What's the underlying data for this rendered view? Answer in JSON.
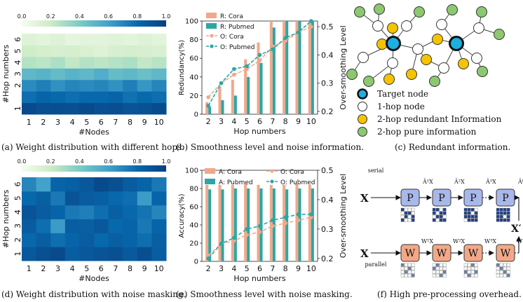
{
  "captions": {
    "a": "(a) Weight distribution with different hops.",
    "b": "(b) Smoothness level and noise information.",
    "c": "(c) Redundant information.",
    "d": "(d) Weight distribution with noise masking.",
    "e": "(e) Smoothness level with noise masking.",
    "f": "(f) High pre-processing overhead."
  },
  "chart_data": [
    {
      "id": "a",
      "type": "heatmap",
      "xlabel": "#Nodes",
      "ylabel": "#Hop numbers",
      "x_ticks": [
        "1",
        "2",
        "3",
        "4",
        "5",
        "6",
        "7",
        "8",
        "9",
        "10"
      ],
      "y_ticks": [
        "1",
        "2",
        "3",
        "4",
        "5",
        "6"
      ],
      "colorbar_ticks": [
        "0.0",
        "0.2",
        "0.4",
        "0.6",
        "0.8",
        "1.0"
      ],
      "colorscale": "GnBu",
      "values": [
        [
          0.95,
          0.92,
          0.93,
          0.92,
          0.95,
          0.92,
          0.93,
          0.9,
          0.91,
          0.94
        ],
        [
          0.78,
          0.82,
          0.8,
          0.78,
          0.8,
          0.8,
          0.82,
          0.77,
          0.8,
          0.78
        ],
        [
          0.68,
          0.72,
          0.66,
          0.7,
          0.68,
          0.7,
          0.66,
          0.72,
          0.64,
          0.7
        ],
        [
          0.5,
          0.52,
          0.48,
          0.52,
          0.5,
          0.55,
          0.48,
          0.5,
          0.46,
          0.5
        ],
        [
          0.26,
          0.24,
          0.28,
          0.22,
          0.26,
          0.24,
          0.26,
          0.28,
          0.22,
          0.25
        ],
        [
          0.18,
          0.16,
          0.15,
          0.16,
          0.14,
          0.12,
          0.15,
          0.16,
          0.15,
          0.14
        ],
        [
          0.12,
          0.1,
          0.12,
          0.08,
          0.1,
          0.1,
          0.11,
          0.1,
          0.12,
          0.1
        ]
      ],
      "row_labels": [
        "1",
        "",
        "2",
        "3",
        "4",
        "5",
        "6"
      ]
    },
    {
      "id": "b",
      "type": "bar",
      "xlabel": "Hop numbers",
      "ylabel": "Redundancy(%)",
      "y2label": "Over-smoothing Level",
      "categories": [
        "2",
        "3",
        "4",
        "5",
        "6",
        "7",
        "8",
        "9",
        "10"
      ],
      "ylim": [
        0,
        100
      ],
      "y_ticks": [
        "0",
        "20",
        "40",
        "60",
        "80",
        "100"
      ],
      "y2lim": [
        0.19,
        0.52
      ],
      "y2_ticks": [
        "0.2",
        "0.3",
        "0.4",
        "0.5"
      ],
      "series": [
        {
          "name": "R: Cora",
          "kind": "bar",
          "color": "#f2a888",
          "values": [
            13,
            30,
            37,
            59,
            77,
            100,
            100,
            100,
            100
          ]
        },
        {
          "name": "R: Pubmed",
          "kind": "bar",
          "color": "#2aa7a5",
          "values": [
            8,
            15,
            20,
            40,
            55,
            93,
            100,
            100,
            100
          ]
        },
        {
          "name": "O: Cora",
          "kind": "line",
          "axis": "right",
          "color": "#f2a888",
          "values": [
            0.25,
            0.3,
            0.33,
            0.35,
            0.38,
            0.43,
            0.45,
            0.48,
            0.5
          ]
        },
        {
          "name": "O: Pubmed",
          "kind": "line",
          "axis": "right",
          "color": "#2aa7a5",
          "values": [
            0.22,
            0.3,
            0.35,
            0.36,
            0.4,
            0.42,
            0.46,
            0.48,
            0.52
          ]
        }
      ],
      "legend": "top-left"
    },
    {
      "id": "d",
      "type": "heatmap",
      "xlabel": "#Nodes",
      "ylabel": "#Hop numbers",
      "x_ticks": [
        "1",
        "2",
        "3",
        "4",
        "5",
        "6",
        "7",
        "8",
        "9",
        "10"
      ],
      "y_ticks": [
        "1",
        "2",
        "3",
        "4",
        "5",
        "6"
      ],
      "colorbar_ticks": [
        "0.0",
        "0.2",
        "0.4",
        "0.6",
        "0.8",
        "1.0"
      ],
      "colorscale": "GnBu",
      "values": [
        [
          0.88,
          0.92,
          0.95,
          0.85,
          0.88,
          0.9,
          0.92,
          0.87,
          0.93,
          0.85
        ],
        [
          0.8,
          0.85,
          0.78,
          0.82,
          0.86,
          0.8,
          0.84,
          0.82,
          0.78,
          0.84
        ],
        [
          0.86,
          0.78,
          0.62,
          0.85,
          0.84,
          0.88,
          0.8,
          0.82,
          0.74,
          0.82
        ],
        [
          0.9,
          0.86,
          0.82,
          0.74,
          0.72,
          0.78,
          0.84,
          0.8,
          0.76,
          0.7
        ],
        [
          0.8,
          0.84,
          0.74,
          0.9,
          0.86,
          0.84,
          0.8,
          0.78,
          0.62,
          0.82
        ],
        [
          0.7,
          0.6,
          0.82,
          0.84,
          0.88,
          0.95,
          0.92,
          0.86,
          0.82,
          0.74
        ]
      ]
    },
    {
      "id": "e",
      "type": "bar",
      "xlabel": "Hop numbers",
      "ylabel": "Accuracy(%)",
      "y2label": "Over-smoothing Level",
      "categories": [
        "2",
        "3",
        "4",
        "5",
        "6",
        "7",
        "8",
        "9",
        "10"
      ],
      "ylim": [
        0,
        100
      ],
      "y_ticks": [
        "0",
        "20",
        "40",
        "60",
        "80",
        "100"
      ],
      "y2lim": [
        0.19,
        0.5
      ],
      "y2_ticks": [
        "0.2",
        "0.3",
        "0.4",
        "0.5"
      ],
      "series": [
        {
          "name": "A: Cora",
          "kind": "bar",
          "color": "#f2a888",
          "values": [
            84,
            84,
            84,
            85,
            84,
            84,
            84,
            85,
            84
          ]
        },
        {
          "name": "A: Pubmed",
          "kind": "bar",
          "color": "#2aa7a5",
          "values": [
            79,
            79,
            80,
            80,
            80,
            80,
            79,
            80,
            80
          ]
        },
        {
          "name": "O: Cora",
          "kind": "line",
          "axis": "right",
          "dash": true,
          "color": "#f2a888",
          "values": [
            0.21,
            0.25,
            0.26,
            0.28,
            0.29,
            0.31,
            0.32,
            0.33,
            0.34
          ]
        },
        {
          "name": "O: Pubmed",
          "kind": "line",
          "axis": "right",
          "dash": true,
          "color": "#2aa7a5",
          "values": [
            0.2,
            0.25,
            0.27,
            0.3,
            0.31,
            0.33,
            0.34,
            0.35,
            0.35
          ]
        }
      ],
      "legend": "top"
    }
  ],
  "diagram_c": {
    "legend": [
      {
        "label": "Target node",
        "color": "#1ab0e0",
        "kind": "target"
      },
      {
        "label": "1-hop node",
        "color": "#ffffff",
        "kind": "hop1"
      },
      {
        "label": "2-hop redundant Information",
        "color": "#f5c400",
        "kind": "redundant"
      },
      {
        "label": "2-hop pure information",
        "color": "#8cc870",
        "kind": "pure"
      }
    ]
  },
  "diagram_f": {
    "x_label": "X",
    "out_label": "X′",
    "serial_label": "serial",
    "parallel_label": "parallel",
    "p_label": "P",
    "w_label": "W",
    "top_arrows": [
      "Â¹X",
      "Â²X",
      "Â³X",
      "ÂᴷX"
    ],
    "bottom_arrows": [
      "W¹X",
      "W²X",
      "W³X",
      "WᴷX"
    ]
  }
}
